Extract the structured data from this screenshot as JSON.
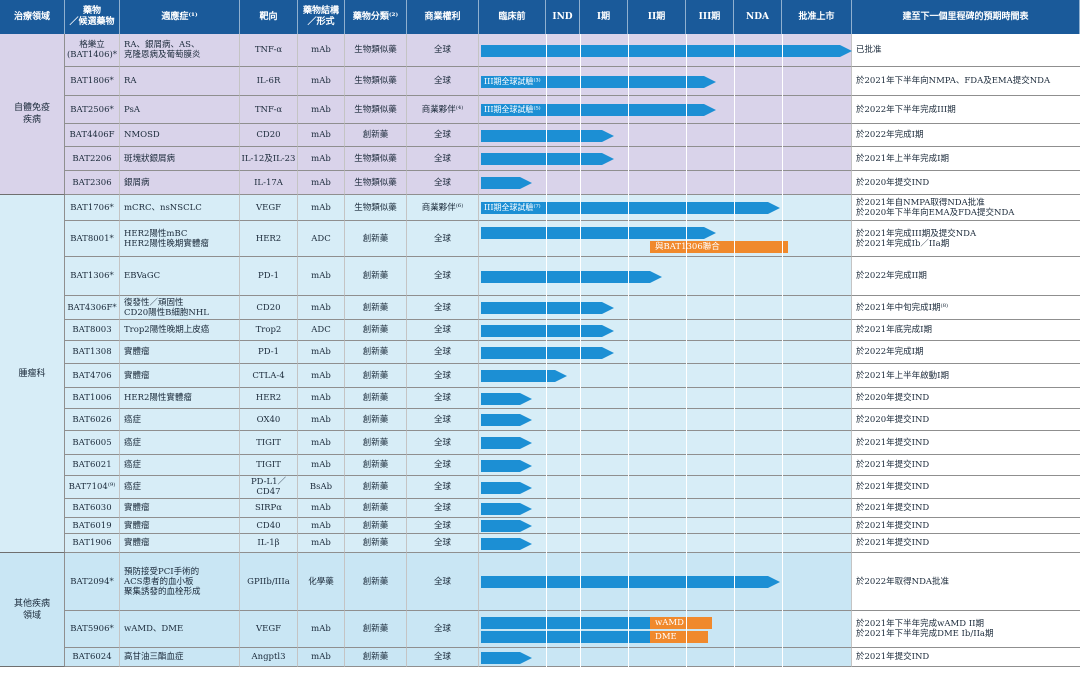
{
  "headers": {
    "area": "治療領域",
    "drug": "藥物\n／候選藥物",
    "indication": "適應症⁽¹⁾",
    "target": "靶向",
    "structure": "藥物結構\n／形式",
    "category": "藥物分類⁽²⁾",
    "rights": "商業權利",
    "preclinical": "臨床前",
    "ind": "IND",
    "phase1": "I期",
    "phase2": "II期",
    "phase3": "III期",
    "nda": "NDA",
    "approved": "批准上市",
    "milestone": "建至下一個里程碑的預期時間表"
  },
  "areas": [
    {
      "name": "自體免疫\n疾病"
    },
    {
      "name": "腫瘤科"
    },
    {
      "name": "其他疾病\n領域"
    }
  ],
  "rows": [
    {
      "drug": "格樂立\n(BAT1406)*",
      "indication": "RA、銀屑病、AS、\n克隆恩病及葡萄膜炎",
      "target": "TNF-α",
      "structure": "mAb",
      "category": "生物類似藥",
      "rights": "全球",
      "progress": 7,
      "bar_label": "",
      "combo": "",
      "milestone": "已批准"
    },
    {
      "drug": "BAT1806*",
      "indication": "RA",
      "target": "IL-6R",
      "structure": "mAb",
      "category": "生物類似藥",
      "rights": "全球",
      "progress": 5,
      "bar_label": "III期全球試驗⁽³⁾",
      "combo": "",
      "milestone": "於2021年下半年向NMPA、FDA及EMA提交NDA"
    },
    {
      "drug": "BAT2506*",
      "indication": "PsA",
      "target": "TNF-α",
      "structure": "mAb",
      "category": "生物類似藥",
      "rights": "商業夥伴⁽⁴⁾",
      "progress": 5,
      "bar_label": "III期全球試驗⁽⁵⁾",
      "combo": "",
      "milestone": "於2022年下半年完成III期"
    },
    {
      "drug": "BAT4406F",
      "indication": "NMOSD",
      "target": "CD20",
      "structure": "mAb",
      "category": "創新藥",
      "rights": "全球",
      "progress": 3,
      "bar_label": "",
      "combo": "",
      "milestone": "於2022年完成I期"
    },
    {
      "drug": "BAT2206",
      "indication": "斑塊狀銀屑病",
      "target": "IL-12及IL-23",
      "structure": "mAb",
      "category": "生物類似藥",
      "rights": "全球",
      "progress": 3,
      "bar_label": "",
      "combo": "",
      "milestone": "於2021年上半年完成I期"
    },
    {
      "drug": "BAT2306",
      "indication": "銀屑病",
      "target": "IL-17A",
      "structure": "mAb",
      "category": "生物類似藥",
      "rights": "全球",
      "progress": 1,
      "bar_label": "",
      "combo": "",
      "milestone": "於2020年提交IND"
    },
    {
      "drug": "BAT1706*",
      "indication": "mCRC、nsNSCLC",
      "target": "VEGF",
      "structure": "mAb",
      "category": "生物類似藥",
      "rights": "商業夥伴⁽⁶⁾",
      "progress": 6,
      "bar_label": "III期全球試驗⁽⁷⁾",
      "combo": "",
      "milestone": "於2021年自NMPA取得NDA批准\n於2020年下半年向EMA及FDA提交NDA"
    },
    {
      "drug": "BAT8001*",
      "indication": "HER2陽性mBC\nHER2陽性晚期實體瘤",
      "target": "HER2",
      "structure": "ADC",
      "category": "創新藥",
      "rights": "全球",
      "progress": 5,
      "bar_label": "",
      "combo": "與BAT1306聯合",
      "milestone": "於2021年完成III期及提交NDA\n於2021年完成Ib／IIa期"
    },
    {
      "drug": "BAT1306*",
      "indication": "EBVaGC",
      "target": "PD-1",
      "structure": "mAb",
      "category": "創新藥",
      "rights": "全球",
      "progress": 4,
      "bar_label": "",
      "combo": "",
      "milestone": "於2022年完成II期"
    },
    {
      "drug": "BAT4306F*",
      "indication": "復發性／頑固性\nCD20陽性B細胞NHL",
      "target": "CD20",
      "structure": "mAb",
      "category": "創新藥",
      "rights": "全球",
      "progress": 3,
      "bar_label": "",
      "combo": "",
      "milestone": "於2021年中旬完成I期⁽⁸⁾"
    },
    {
      "drug": "BAT8003",
      "indication": "Trop2陽性晚期上皮癌",
      "target": "Trop2",
      "structure": "ADC",
      "category": "創新藥",
      "rights": "全球",
      "progress": 3,
      "bar_label": "",
      "combo": "",
      "milestone": "於2021年底完成I期"
    },
    {
      "drug": "BAT1308",
      "indication": "實體瘤",
      "target": "PD-1",
      "structure": "mAb",
      "category": "創新藥",
      "rights": "全球",
      "progress": 3,
      "bar_label": "",
      "combo": "",
      "milestone": "於2022年完成I期"
    },
    {
      "drug": "BAT4706",
      "indication": "實體瘤",
      "target": "CTLA-4",
      "structure": "mAb",
      "category": "創新藥",
      "rights": "全球",
      "progress": 2,
      "bar_label": "",
      "combo": "",
      "milestone": "於2021年上半年啟動I期"
    },
    {
      "drug": "BAT1006",
      "indication": "HER2陽性實體瘤",
      "target": "HER2",
      "structure": "mAb",
      "category": "創新藥",
      "rights": "全球",
      "progress": 1,
      "bar_label": "",
      "combo": "",
      "milestone": "於2020年提交IND"
    },
    {
      "drug": "BAT6026",
      "indication": "癌症",
      "target": "OX40",
      "structure": "mAb",
      "category": "創新藥",
      "rights": "全球",
      "progress": 1,
      "bar_label": "",
      "combo": "",
      "milestone": "於2020年提交IND"
    },
    {
      "drug": "BAT6005",
      "indication": "癌症",
      "target": "TIGIT",
      "structure": "mAb",
      "category": "創新藥",
      "rights": "全球",
      "progress": 1,
      "bar_label": "",
      "combo": "",
      "milestone": "於2021年提交IND"
    },
    {
      "drug": "BAT6021",
      "indication": "癌症",
      "target": "TIGIT",
      "structure": "mAb",
      "category": "創新藥",
      "rights": "全球",
      "progress": 1,
      "bar_label": "",
      "combo": "",
      "milestone": "於2021年提交IND"
    },
    {
      "drug": "BAT7104⁽⁹⁾",
      "indication": "癌症",
      "target": "PD-L1／CD47",
      "structure": "BsAb",
      "category": "創新藥",
      "rights": "全球",
      "progress": 1,
      "bar_label": "",
      "combo": "",
      "milestone": "於2021年提交IND"
    },
    {
      "drug": "BAT6030",
      "indication": "實體瘤",
      "target": "SIRPα",
      "structure": "mAb",
      "category": "創新藥",
      "rights": "全球",
      "progress": 1,
      "bar_label": "",
      "combo": "",
      "milestone": "於2021年提交IND"
    },
    {
      "drug": "BAT6019",
      "indication": "實體瘤",
      "target": "CD40",
      "structure": "mAb",
      "category": "創新藥",
      "rights": "全球",
      "progress": 1,
      "bar_label": "",
      "combo": "",
      "milestone": "於2021年提交IND"
    },
    {
      "drug": "BAT1906",
      "indication": "實體瘤",
      "target": "IL-1β",
      "structure": "mAb",
      "category": "創新藥",
      "rights": "全球",
      "progress": 1,
      "bar_label": "",
      "combo": "",
      "milestone": "於2021年提交IND"
    },
    {
      "drug": "BAT2094*",
      "indication": "預防接受PCI手術的\nACS患者的血小板\n聚集誘發的血栓形成",
      "target": "GPIIb/IIIa",
      "structure": "化學藥",
      "category": "創新藥",
      "rights": "全球",
      "progress": 6,
      "bar_label": "",
      "combo": "",
      "milestone": "於2022年取得NDA批准"
    },
    {
      "drug": "BAT5906*",
      "indication": "wAMD、DME",
      "target": "VEGF",
      "structure": "mAb",
      "category": "創新藥",
      "rights": "全球",
      "progress": 4,
      "bar_label": "",
      "combo": "wAMD|DME",
      "milestone": "於2021年下半年完成wAMD II期\n於2021年下半年完成DME Ib/IIa期"
    },
    {
      "drug": "BAT6024",
      "indication": "高甘油三酯血症",
      "target": "Angptl3",
      "structure": "mAb",
      "category": "創新藥",
      "rights": "全球",
      "progress": 1,
      "bar_label": "",
      "combo": "",
      "milestone": "於2021年提交IND"
    }
  ],
  "colors": {
    "header": "#1a5a9a",
    "autoimmune": "#d9d3ea",
    "oncology": "#d7edf7",
    "other": "#c9e6f4",
    "bar": "#1c8fd4",
    "combo": "#f0892c"
  }
}
